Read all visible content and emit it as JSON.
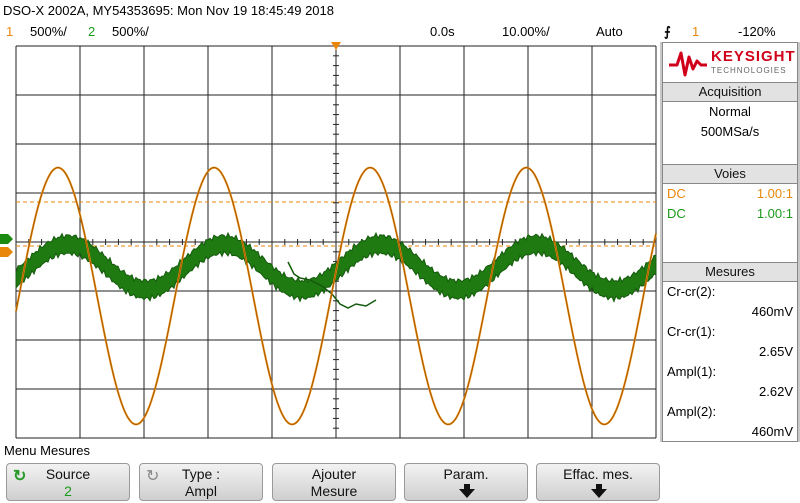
{
  "titlebar": {
    "instrument": "DSO-X 2002A, MY54353695: Mon Nov 19 18:45:49 2018"
  },
  "status": {
    "ch1_num": "1",
    "ch1_scale": "500%/",
    "ch2_num": "2",
    "ch2_scale": "500%/",
    "time_delay": "0.0s",
    "timebase": "10.00%/",
    "trigger_mode": "Auto",
    "trigger_source": "1",
    "trigger_level": "-120%"
  },
  "brand": {
    "name": "KEYSIGHT",
    "sub": "TECHNOLOGIES"
  },
  "acquisition": {
    "title": "Acquisition",
    "mode": "Normal",
    "rate": "500MSa/s"
  },
  "voies": {
    "title": "Voies",
    "ch1_coupling": "DC",
    "ch1_probe": "1.00:1",
    "ch2_coupling": "DC",
    "ch2_probe": "1.00:1"
  },
  "mesures": {
    "title": "Mesures",
    "items": [
      {
        "label": "Cr-cr(2):",
        "value": "460mV"
      },
      {
        "label": "Cr-cr(1):",
        "value": "2.65V"
      },
      {
        "label": "Ampl(1):",
        "value": "2.62V"
      },
      {
        "label": "Ampl(2):",
        "value": "460mV"
      }
    ]
  },
  "menu": {
    "title": "Menu Mesures",
    "keys": [
      {
        "line1": "Source",
        "line2": "2"
      },
      {
        "line1": "Type :",
        "line2": "Ampl"
      },
      {
        "line1": "Ajouter",
        "line2": "Mesure"
      },
      {
        "line1": "Param.",
        "line2": ""
      },
      {
        "line1": "Effac. mes.",
        "line2": ""
      }
    ]
  },
  "colors": {
    "ch1": "#e8870a",
    "ch2": "#1a8a10",
    "grid": "#222222",
    "trigger_marker": "#e8870a"
  },
  "icons": {
    "trigger_edge": "rising-edge-icon",
    "softkey_rotate": "rotate-knob-icon",
    "softkey_more": "down-arrow-icon"
  },
  "waveforms": {
    "ch1": {
      "type": "sine",
      "amplitude_V": 1.31,
      "volts_per_div": 0.5,
      "cycles_on_screen": 4.1
    },
    "ch2": {
      "type": "sine",
      "amplitude_V": 0.23,
      "volts_per_div": 0.5,
      "cycles_on_screen": 4.1
    }
  }
}
